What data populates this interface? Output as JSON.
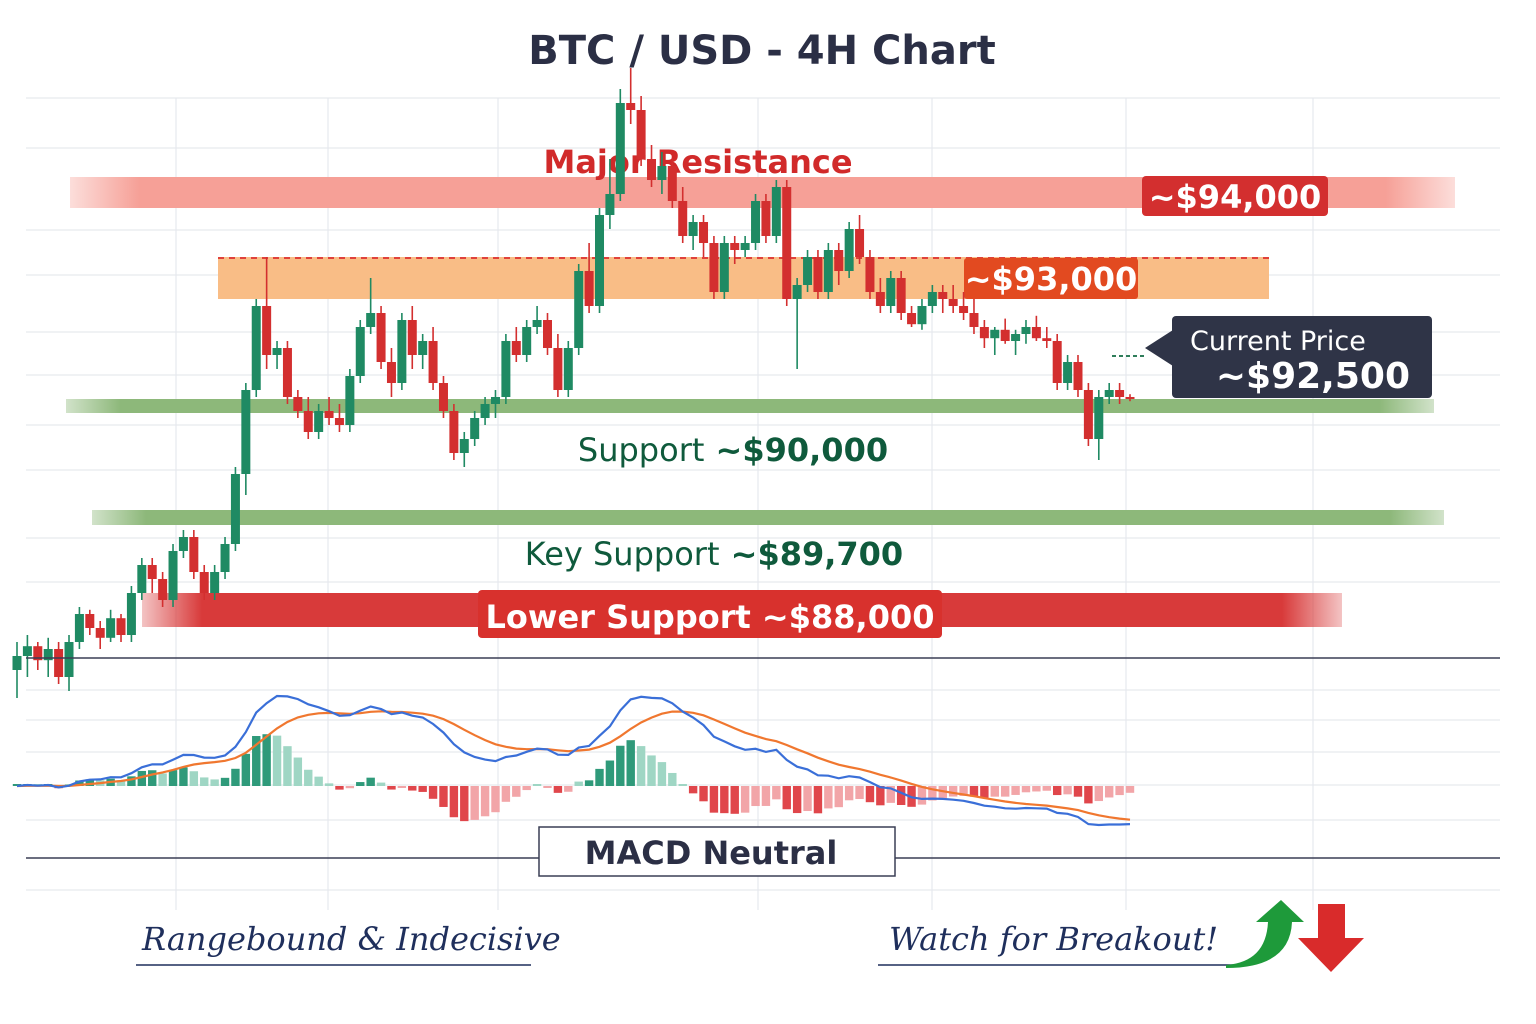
{
  "chart_data": {
    "type": "candlestick",
    "title": "BTC / USD - 4H Chart",
    "colors": {
      "up": "#1f8a63",
      "down": "#d32f2f",
      "macd": "#3a6fd8",
      "signal": "#f0772f"
    },
    "levels": {
      "major_resistance": {
        "label": "Major Resistance",
        "price": "~$94,000"
      },
      "resistance": {
        "price": "~$93,000"
      },
      "current_price": {
        "label": "Current Price",
        "price": "~$92,500"
      },
      "support": {
        "label": "Support",
        "price": "~$90,000"
      },
      "key_support": {
        "label": "Key Support",
        "price": "~$89,700"
      },
      "lower_support": {
        "label": "Lower Support",
        "price": "~$88,000"
      }
    },
    "candles": [
      [
        89050,
        89250,
        88850,
        89150
      ],
      [
        89150,
        89300,
        89000,
        89220
      ],
      [
        89220,
        89250,
        89050,
        89120
      ],
      [
        89120,
        89280,
        89000,
        89200
      ],
      [
        89200,
        89250,
        88950,
        89000
      ],
      [
        89000,
        89300,
        88900,
        89250
      ],
      [
        89250,
        89500,
        89200,
        89450
      ],
      [
        89450,
        89480,
        89300,
        89350
      ],
      [
        89350,
        89400,
        89200,
        89280
      ],
      [
        89280,
        89480,
        89250,
        89420
      ],
      [
        89420,
        89450,
        89250,
        89300
      ],
      [
        89300,
        89650,
        89250,
        89600
      ],
      [
        89600,
        89850,
        89550,
        89800
      ],
      [
        89800,
        89850,
        89600,
        89700
      ],
      [
        89700,
        89750,
        89500,
        89550
      ],
      [
        89550,
        89950,
        89500,
        89900
      ],
      [
        89900,
        90050,
        89850,
        90000
      ],
      [
        90000,
        90050,
        89700,
        89750
      ],
      [
        89750,
        89800,
        89550,
        89600
      ],
      [
        89600,
        89800,
        89550,
        89750
      ],
      [
        89750,
        90000,
        89700,
        89950
      ],
      [
        89950,
        90500,
        89900,
        90450
      ],
      [
        90450,
        91100,
        90300,
        91050
      ],
      [
        91050,
        91700,
        91000,
        91650
      ],
      [
        91650,
        92000,
        91200,
        91300
      ],
      [
        91300,
        91400,
        91200,
        91350
      ],
      [
        91350,
        91400,
        90950,
        91000
      ],
      [
        91000,
        91050,
        90850,
        90900
      ],
      [
        90900,
        91000,
        90700,
        90750
      ],
      [
        90750,
        90950,
        90700,
        90900
      ],
      [
        90900,
        91000,
        90800,
        90850
      ],
      [
        90850,
        90950,
        90750,
        90800
      ],
      [
        90800,
        91200,
        90750,
        91150
      ],
      [
        91150,
        91550,
        91100,
        91500
      ],
      [
        91500,
        91850,
        91450,
        91600
      ],
      [
        91600,
        91650,
        91200,
        91250
      ],
      [
        91250,
        91350,
        91000,
        91100
      ],
      [
        91100,
        91600,
        91050,
        91550
      ],
      [
        91550,
        91650,
        91200,
        91300
      ],
      [
        91300,
        91450,
        91200,
        91400
      ],
      [
        91400,
        91500,
        91050,
        91100
      ],
      [
        91100,
        91150,
        90850,
        90900
      ],
      [
        90900,
        90950,
        90550,
        90600
      ],
      [
        90600,
        90750,
        90500,
        90700
      ],
      [
        90700,
        90900,
        90650,
        90850
      ],
      [
        90850,
        91000,
        90800,
        90950
      ],
      [
        90950,
        91050,
        90850,
        91000
      ],
      [
        91000,
        91450,
        90950,
        91400
      ],
      [
        91400,
        91500,
        91250,
        91300
      ],
      [
        91300,
        91550,
        91250,
        91500
      ],
      [
        91500,
        91650,
        91450,
        91550
      ],
      [
        91550,
        91600,
        91300,
        91350
      ],
      [
        91350,
        91450,
        91000,
        91050
      ],
      [
        91050,
        91400,
        91000,
        91350
      ],
      [
        91350,
        91950,
        91300,
        91900
      ],
      [
        91900,
        92100,
        91600,
        91650
      ],
      [
        91650,
        92350,
        91600,
        92300
      ],
      [
        92300,
        92700,
        92200,
        92450
      ],
      [
        92450,
        93200,
        92400,
        93100
      ],
      [
        93100,
        93350,
        92950,
        93050
      ],
      [
        93050,
        93150,
        92650,
        92700
      ],
      [
        92700,
        92800,
        92500,
        92550
      ],
      [
        92550,
        92750,
        92450,
        92650
      ],
      [
        92650,
        92700,
        92350,
        92400
      ],
      [
        92400,
        92500,
        92100,
        92150
      ],
      [
        92150,
        92300,
        92050,
        92250
      ],
      [
        92250,
        92300,
        92000,
        92100
      ],
      [
        92100,
        92150,
        91700,
        91750
      ],
      [
        91750,
        92150,
        91700,
        92100
      ],
      [
        92100,
        92150,
        91950,
        92050
      ],
      [
        92050,
        92150,
        92000,
        92100
      ],
      [
        92100,
        92450,
        92050,
        92400
      ],
      [
        92400,
        92450,
        92100,
        92150
      ],
      [
        92150,
        92550,
        92100,
        92500
      ],
      [
        92500,
        92550,
        91650,
        91700
      ],
      [
        91700,
        91850,
        91200,
        91800
      ],
      [
        91800,
        92050,
        91750,
        92000
      ],
      [
        92000,
        92050,
        91700,
        91750
      ],
      [
        91750,
        92100,
        91700,
        92050
      ],
      [
        92050,
        92100,
        91800,
        91900
      ],
      [
        91900,
        92250,
        91850,
        92200
      ],
      [
        92200,
        92300,
        91950,
        92000
      ],
      [
        92000,
        92050,
        91700,
        91750
      ],
      [
        91750,
        91850,
        91600,
        91650
      ],
      [
        91650,
        91900,
        91600,
        91850
      ],
      [
        91850,
        91900,
        91550,
        91600
      ],
      [
        91600,
        91650,
        91500,
        91520
      ],
      [
        91520,
        91700,
        91480,
        91650
      ],
      [
        91650,
        91800,
        91600,
        91750
      ],
      [
        91750,
        91800,
        91600,
        91700
      ],
      [
        91700,
        91800,
        91600,
        91650
      ],
      [
        91650,
        91750,
        91550,
        91600
      ],
      [
        91600,
        91700,
        91450,
        91500
      ],
      [
        91500,
        91550,
        91350,
        91420
      ],
      [
        91420,
        91500,
        91300,
        91480
      ],
      [
        91480,
        91560,
        91380,
        91400
      ],
      [
        91400,
        91480,
        91300,
        91450
      ],
      [
        91450,
        91550,
        91380,
        91500
      ],
      [
        91500,
        91580,
        91400,
        91420
      ],
      [
        91420,
        91500,
        91350,
        91400
      ],
      [
        91400,
        91450,
        91050,
        91100
      ],
      [
        91100,
        91300,
        91050,
        91250
      ],
      [
        91250,
        91300,
        91000,
        91050
      ],
      [
        91050,
        91100,
        90650,
        90700
      ],
      [
        90700,
        91050,
        90550,
        91000
      ],
      [
        91000,
        91100,
        90950,
        91050
      ],
      [
        91050,
        91100,
        90950,
        91000
      ],
      [
        91000,
        91020,
        90970,
        90990
      ]
    ],
    "annotations": {
      "macd": "MACD Neutral",
      "left_note": "Rangebound & Indecisive",
      "right_note": "Watch for Breakout!"
    },
    "grid": true
  }
}
